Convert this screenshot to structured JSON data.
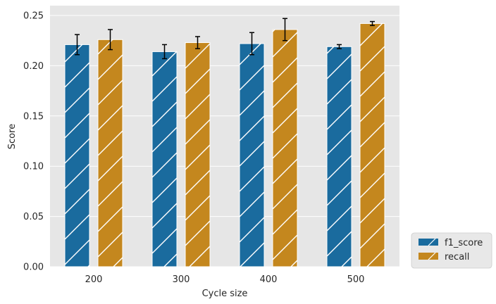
{
  "chart_data": {
    "type": "bar",
    "xlabel": "Cycle size",
    "ylabel": "Score",
    "ylim": [
      0,
      0.25
    ],
    "yticks": [
      "0.00",
      "0.05",
      "0.10",
      "0.15",
      "0.20",
      "0.25"
    ],
    "categories": [
      "200",
      "300",
      "400",
      "500"
    ],
    "grid": true,
    "legend_position": "bottom-right, outside plot",
    "series": [
      {
        "name": "f1_score",
        "color": "#1a6b9e",
        "hatch": "diagonal",
        "values": [
          0.221,
          0.214,
          0.222,
          0.219
        ],
        "error": [
          0.01,
          0.007,
          0.011,
          0.002
        ]
      },
      {
        "name": "recall",
        "color": "#c4871e",
        "hatch": "diagonal",
        "values": [
          0.226,
          0.223,
          0.236,
          0.242
        ],
        "error": [
          0.01,
          0.006,
          0.011,
          0.002
        ]
      }
    ]
  }
}
